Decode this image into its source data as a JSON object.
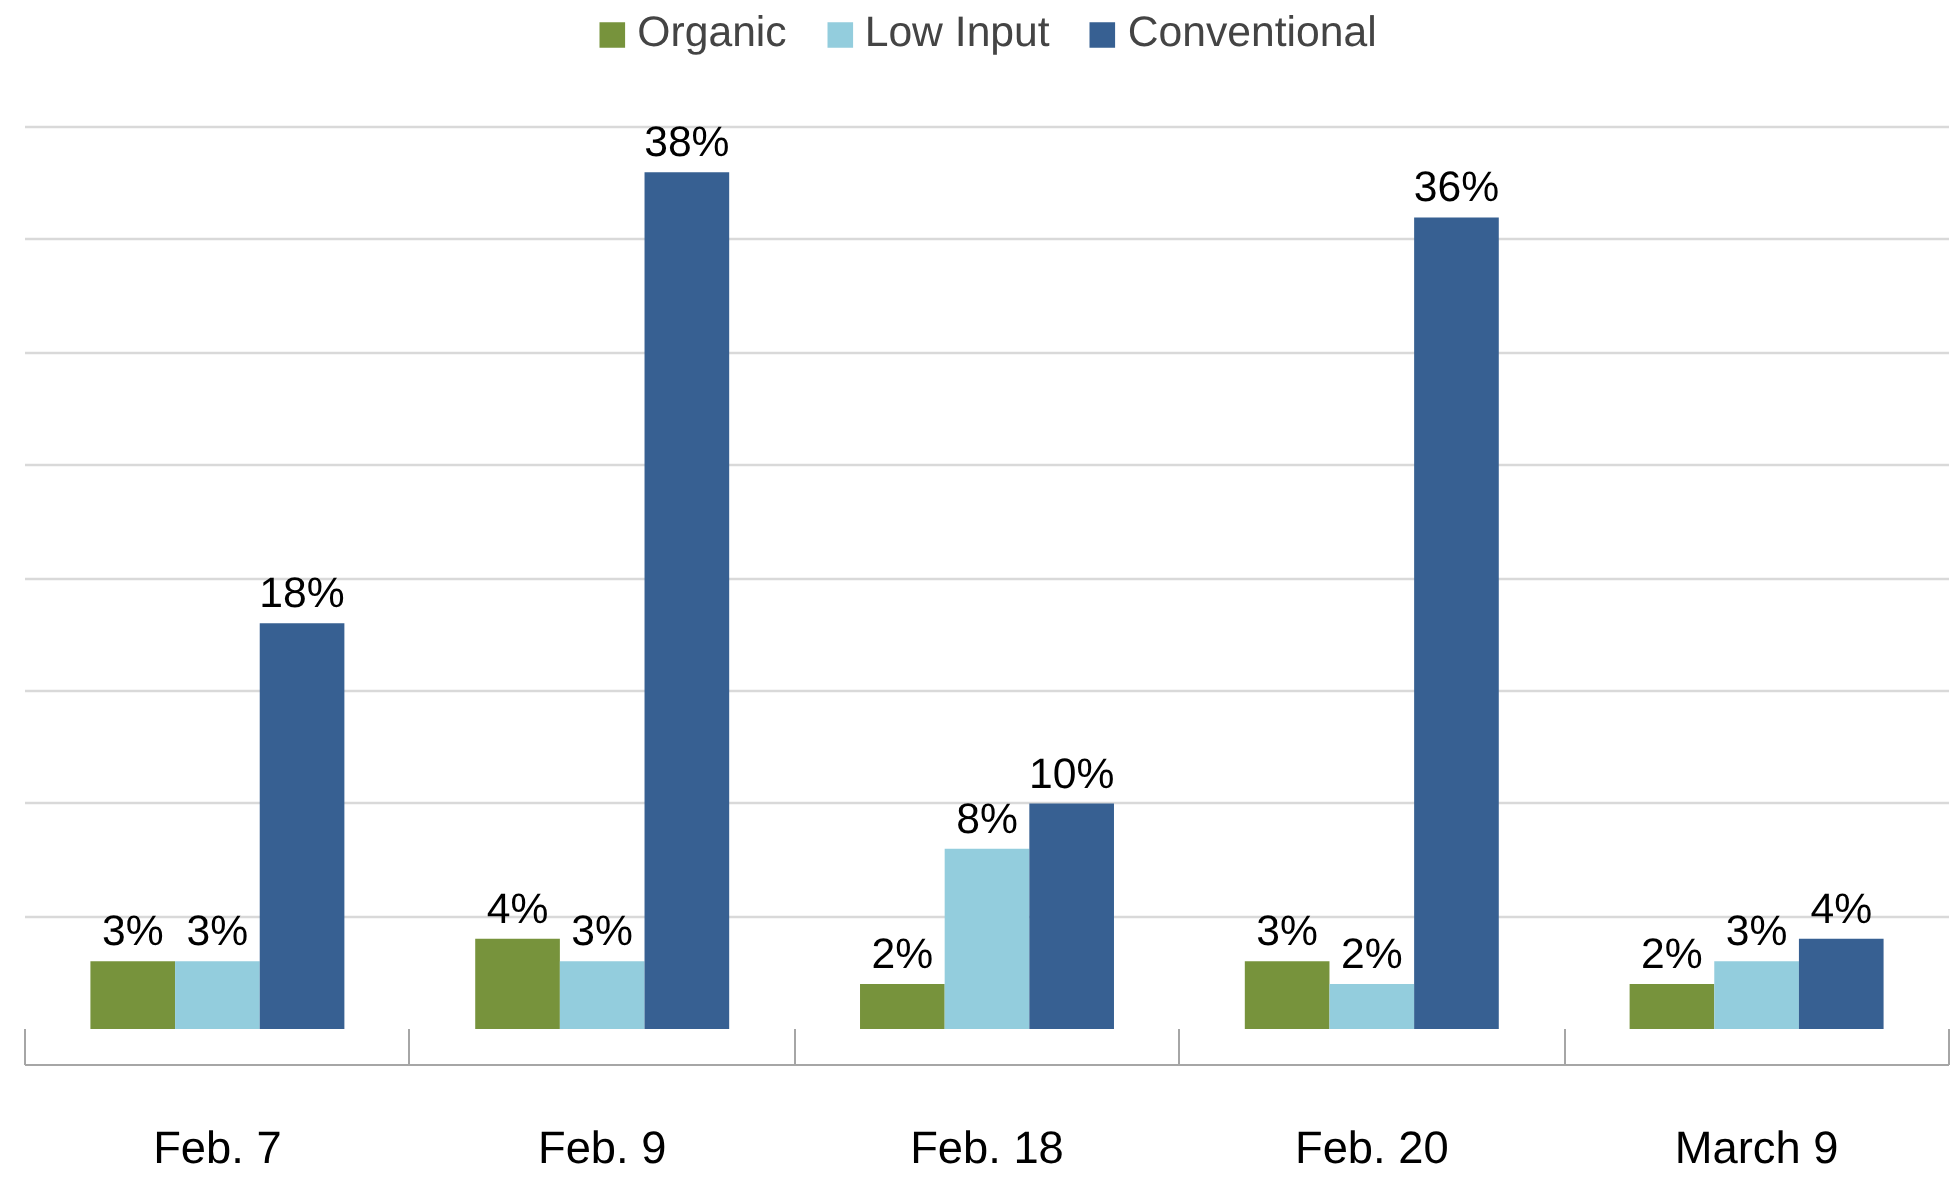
{
  "chart_data": {
    "type": "bar",
    "categories": [
      "Feb. 7",
      "Feb. 9",
      "Feb. 18",
      "Feb. 20",
      "March 9"
    ],
    "series": [
      {
        "name": "Organic",
        "color": "#77933c",
        "values": [
          3,
          4,
          2,
          3,
          2
        ],
        "value_labels": [
          "3%",
          "4%",
          "2%",
          "3%",
          "2%"
        ]
      },
      {
        "name": "Low Input",
        "color": "#93cddd",
        "values": [
          3,
          3,
          8,
          2,
          3
        ],
        "value_labels": [
          "3%",
          "3%",
          "8%",
          "2%",
          "3%"
        ]
      },
      {
        "name": "Conventional",
        "color": "#376092",
        "values": [
          18,
          38,
          10,
          36,
          4
        ],
        "value_labels": [
          "18%",
          "38%",
          "10%",
          "36%",
          "4%"
        ]
      }
    ],
    "tick_labels": "x",
    "grid": "y",
    "legend": "top"
  }
}
